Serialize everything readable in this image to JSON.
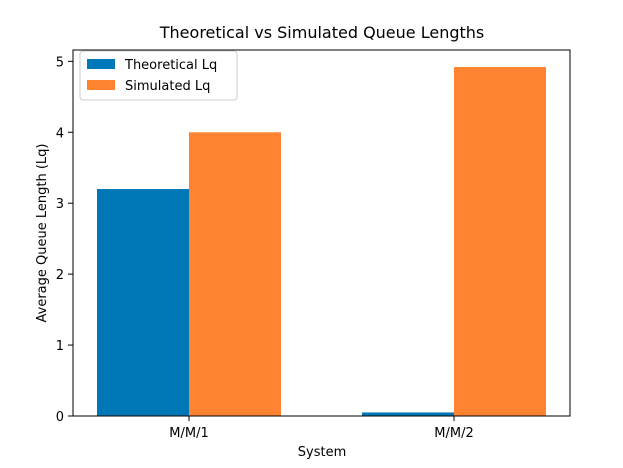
{
  "chart_data": {
    "type": "bar",
    "title": "Theoretical vs Simulated Queue Lengths",
    "xlabel": "System",
    "ylabel": "Average Queue Length (Lq)",
    "categories": [
      "M/M/1",
      "M/M/2"
    ],
    "series": [
      {
        "name": "Theoretical Lq",
        "values": [
          3.2,
          0.05
        ],
        "color": "#0077b6"
      },
      {
        "name": "Simulated Lq",
        "values": [
          4.0,
          4.92
        ],
        "color": "#ff8330"
      }
    ],
    "ylim": [
      0,
      5.16
    ],
    "yticks": [
      0,
      1,
      2,
      3,
      4,
      5
    ],
    "grid": false,
    "legend_position": "top-left"
  }
}
